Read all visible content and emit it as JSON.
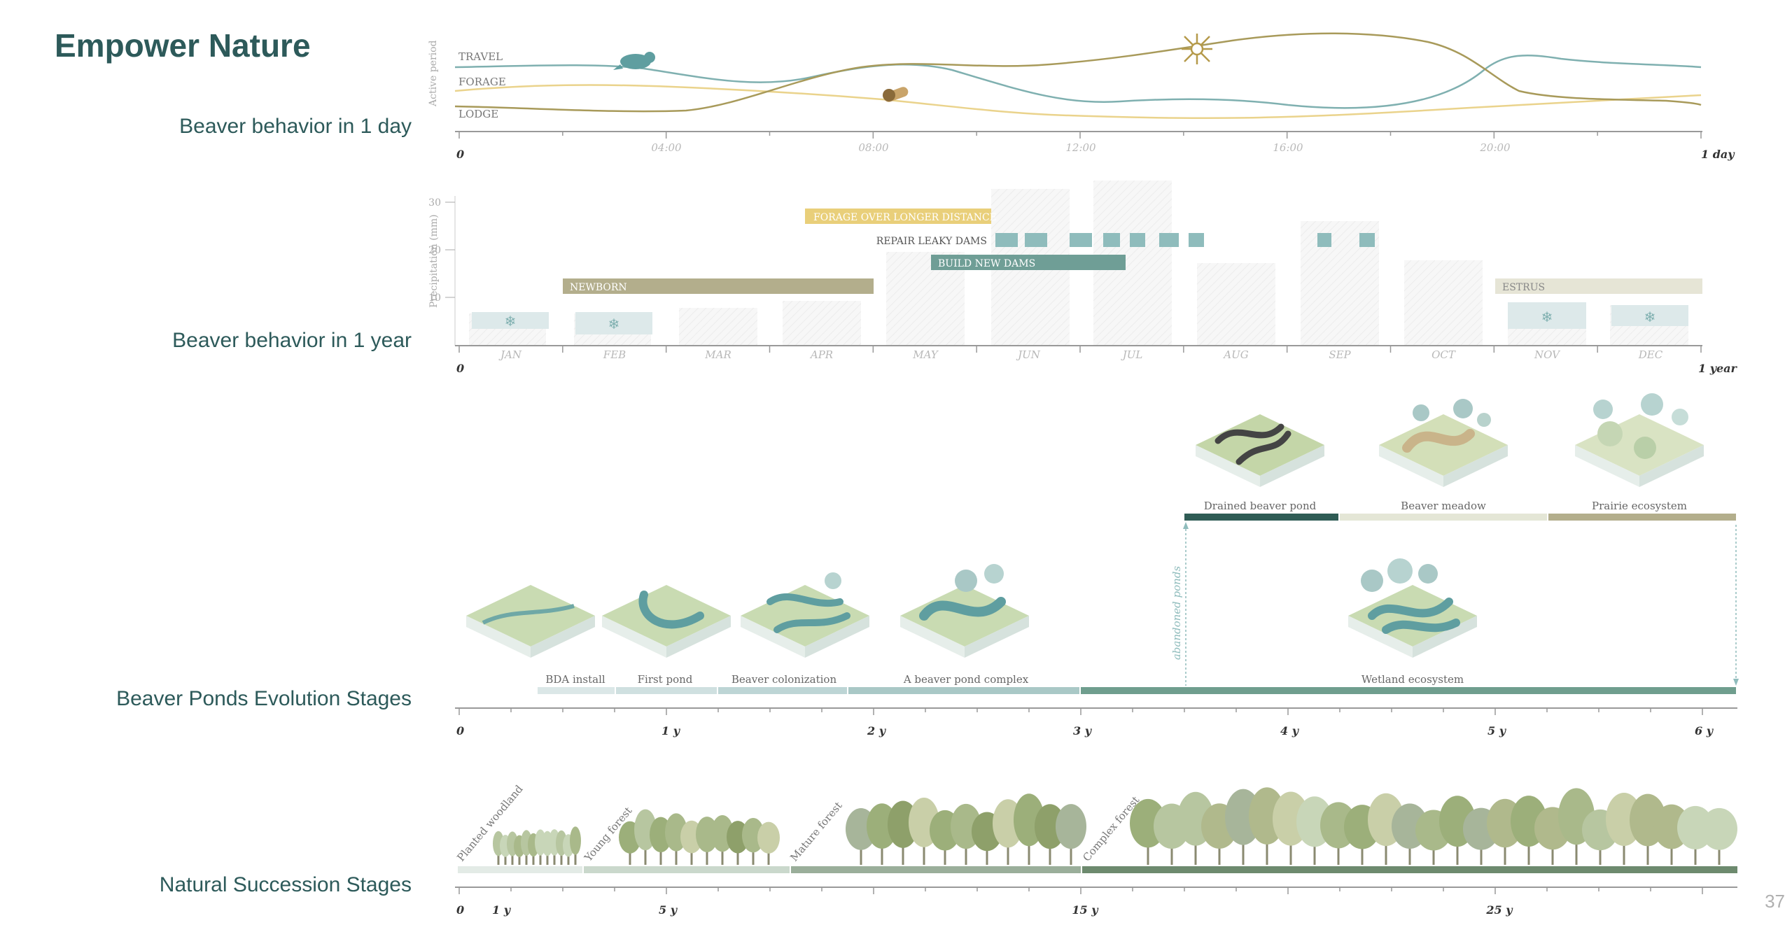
{
  "title": "Empower Nature",
  "page_number": "37",
  "colors": {
    "title": "#2d5a5a",
    "teal": "#7fb0b0",
    "olive": "#a89a5a",
    "yellow": "#e9cf7a",
    "dark_teal": "#2f5c55",
    "sage": "#6f8f75"
  },
  "day_chart": {
    "label": "Beaver behavior in 1 day",
    "ylabel": "Active period",
    "lanes": [
      "TRAVEL",
      "FORAGE",
      "LODGE"
    ],
    "ticks": [
      "0",
      "04:00",
      "08:00",
      "12:00",
      "16:00",
      "20:00",
      "1 day"
    ],
    "icons": [
      "beaver-icon",
      "log-icon",
      "sun-icon"
    ]
  },
  "year_chart": {
    "label": "Beaver behavior in 1 year",
    "ylabel": "Precipitation (mm)",
    "yticks": [
      "30",
      "20",
      "10"
    ],
    "months": [
      "JAN",
      "FEB",
      "MAR",
      "APR",
      "MAY",
      "JUN",
      "JUL",
      "AUG",
      "SEP",
      "OCT",
      "NOV",
      "DEC"
    ],
    "start": "0",
    "end": "1 year",
    "bars": {
      "forage": "FORAGE OVER LONGER DISTANCE",
      "repair": "REPAIR LEAKY DAMS",
      "build": "BUILD NEW DAMS",
      "newborn": "NEWBORN",
      "estrus": "ESTRUS"
    }
  },
  "ponds_chart": {
    "label": "Beaver Ponds Evolution Stages",
    "stages": [
      "BDA install",
      "First pond",
      "Beaver colonization",
      "A beaver pond complex",
      "Wetland ecosystem"
    ],
    "upper_stages": [
      "Drained beaver pond",
      "Beaver meadow",
      "Prairie ecosystem"
    ],
    "side_label": "abandoned ponds",
    "ticks": [
      "0",
      "1 y",
      "2 y",
      "3 y",
      "4 y",
      "5 y",
      "6 y"
    ]
  },
  "succession_chart": {
    "label": "Natural Succession Stages",
    "stages": [
      "Planted woodland",
      "Young forest",
      "Mature forest",
      "Complex forest"
    ],
    "ticks": [
      "0",
      "1 y",
      "5 y",
      "15 y",
      "25 y"
    ]
  }
}
